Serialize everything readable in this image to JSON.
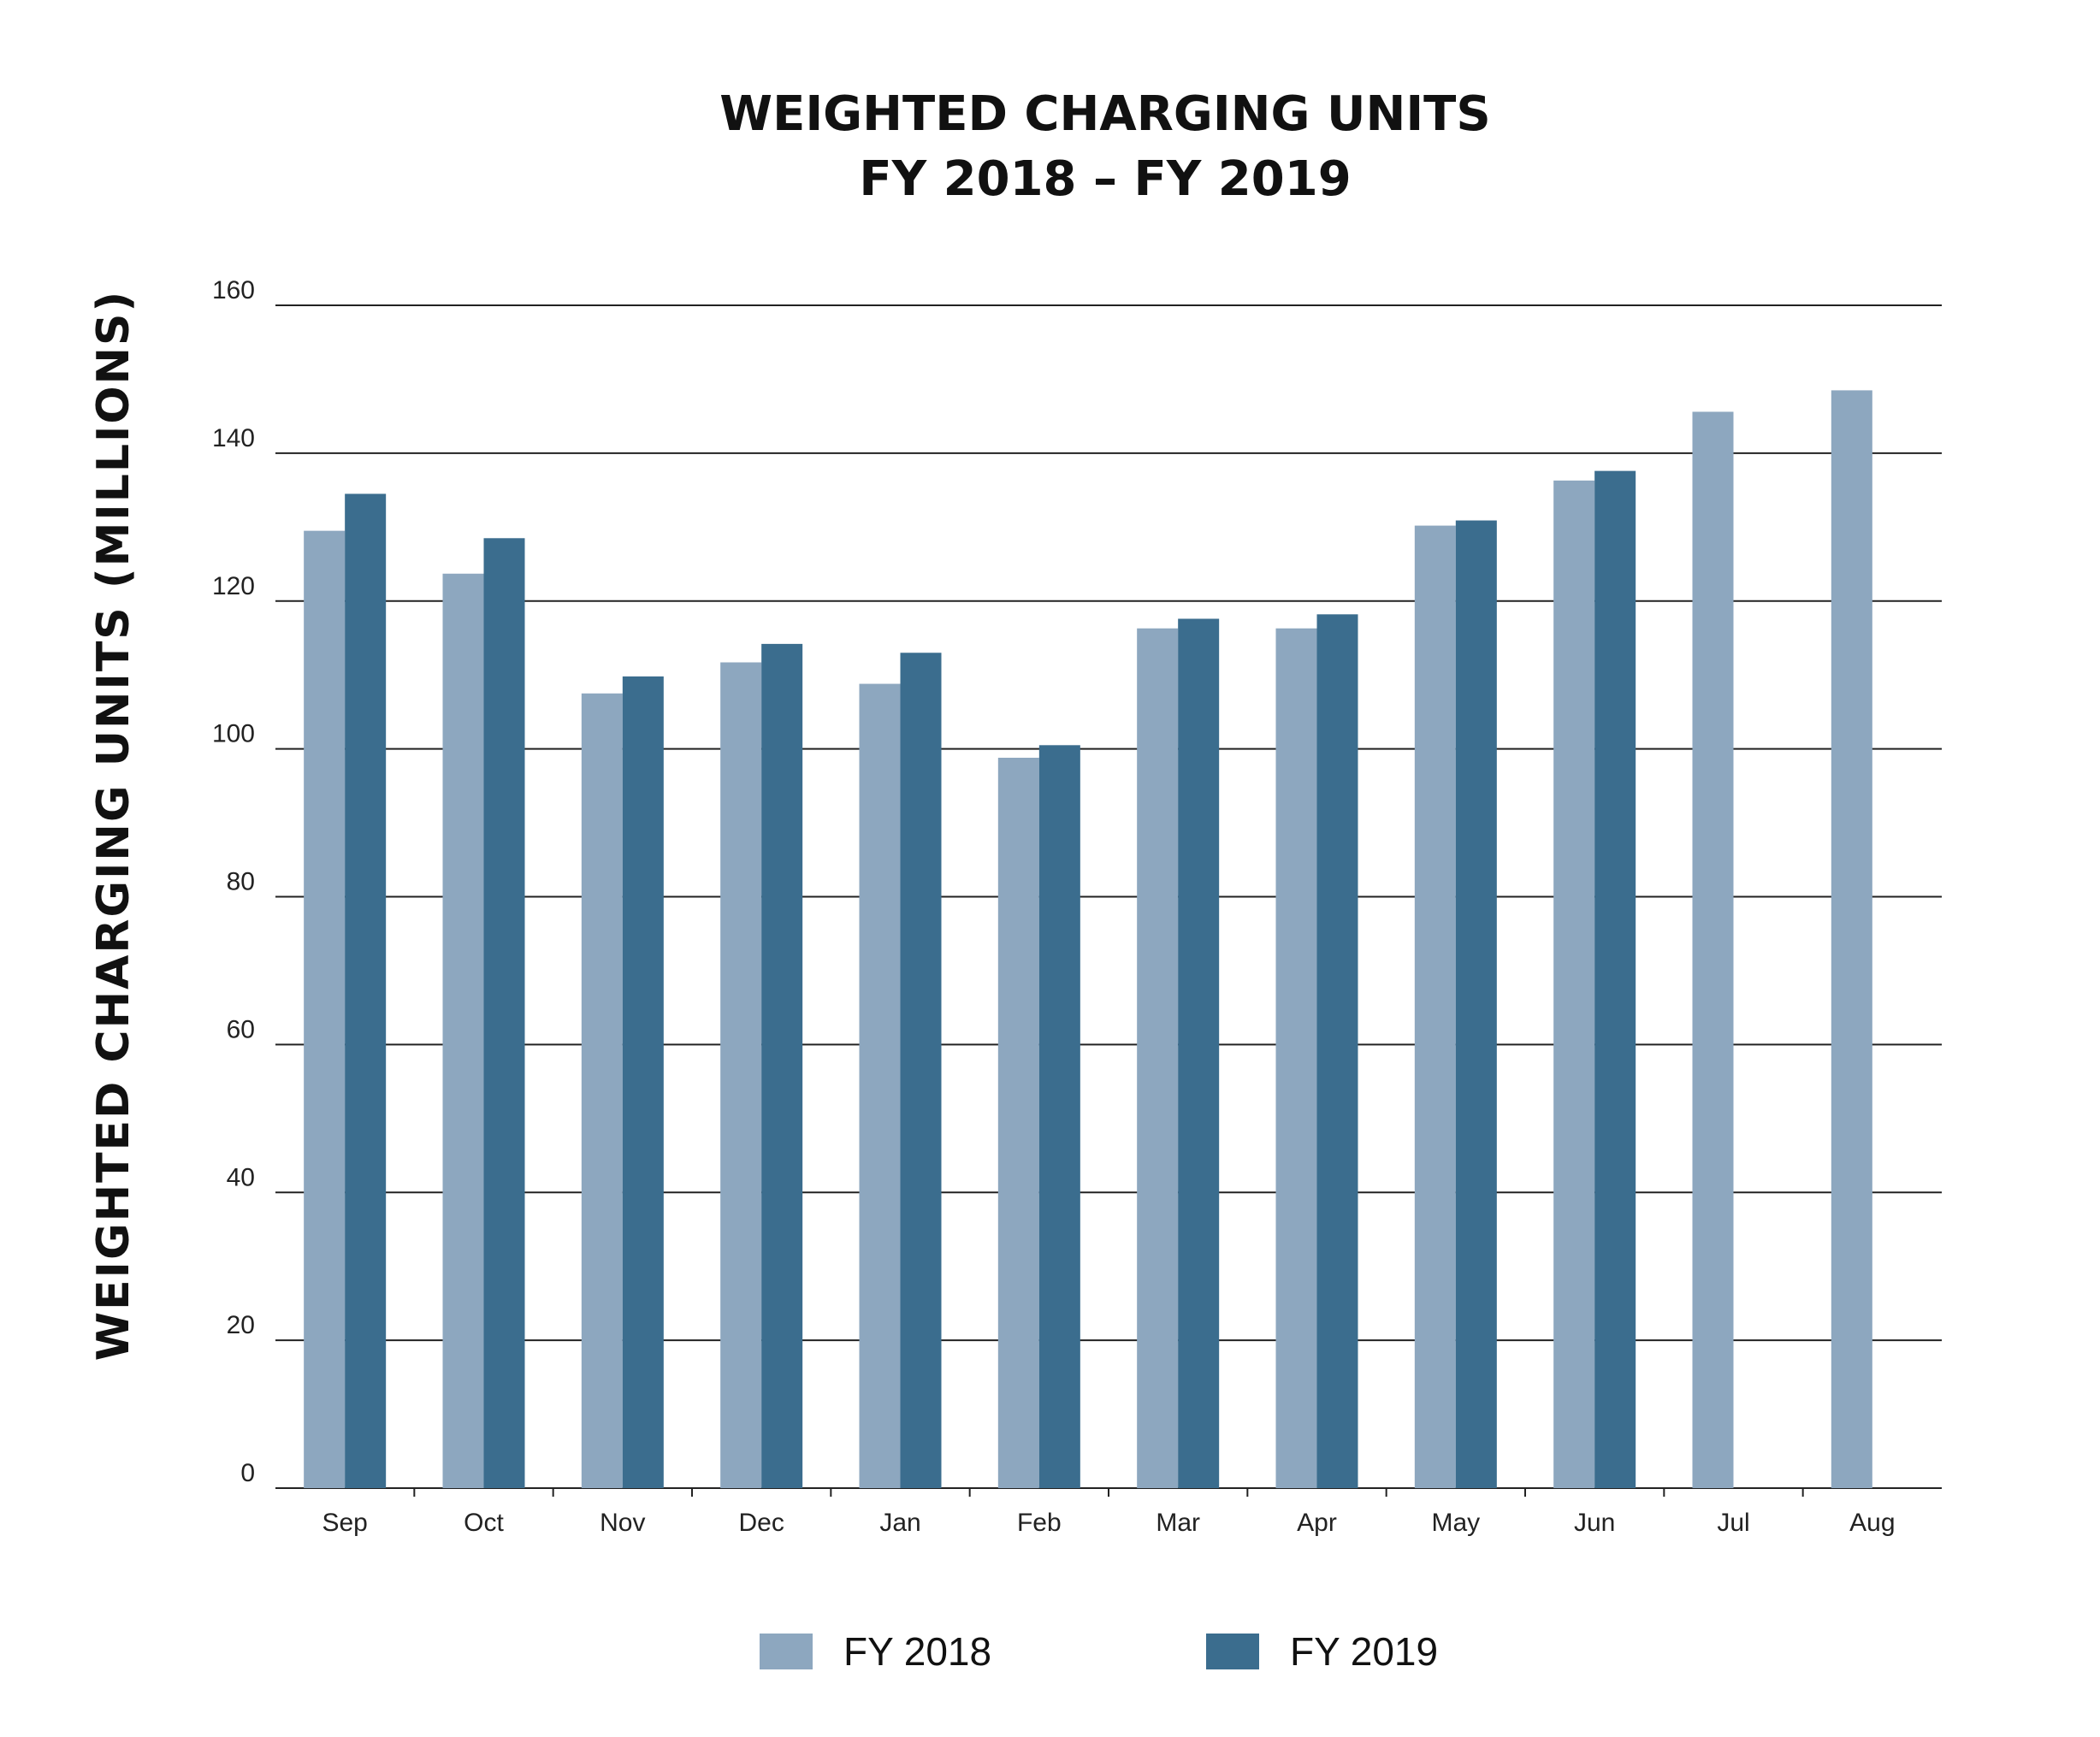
{
  "chart_data": {
    "type": "bar",
    "title": "WEIGHTED CHARGING UNITS",
    "subtitle": "FY 2018 – FY 2019",
    "xlabel": "",
    "ylabel": "WEIGHTED CHARGING UNITS (MILLIONS)",
    "ylim": [
      0,
      160
    ],
    "yticks": [
      0,
      20,
      40,
      60,
      80,
      100,
      120,
      140,
      160
    ],
    "grid": true,
    "legend_position": "bottom",
    "categories": [
      "Sep",
      "Oct",
      "Nov",
      "Dec",
      "Jan",
      "Feb",
      "Mar",
      "Apr",
      "May",
      "Jun",
      "Jul",
      "Aug"
    ],
    "series": [
      {
        "name": "FY 2018",
        "color": "#8da7bf",
        "values": [
          129.5,
          123.7,
          107.5,
          111.7,
          108.8,
          98.8,
          116.3,
          116.3,
          130.2,
          136.3,
          145.6,
          148.5
        ]
      },
      {
        "name": "FY 2019",
        "color": "#3b6d8e",
        "values": [
          134.5,
          128.5,
          109.8,
          114.2,
          113.0,
          100.5,
          117.6,
          118.2,
          130.9,
          137.6,
          null,
          null
        ]
      }
    ]
  }
}
